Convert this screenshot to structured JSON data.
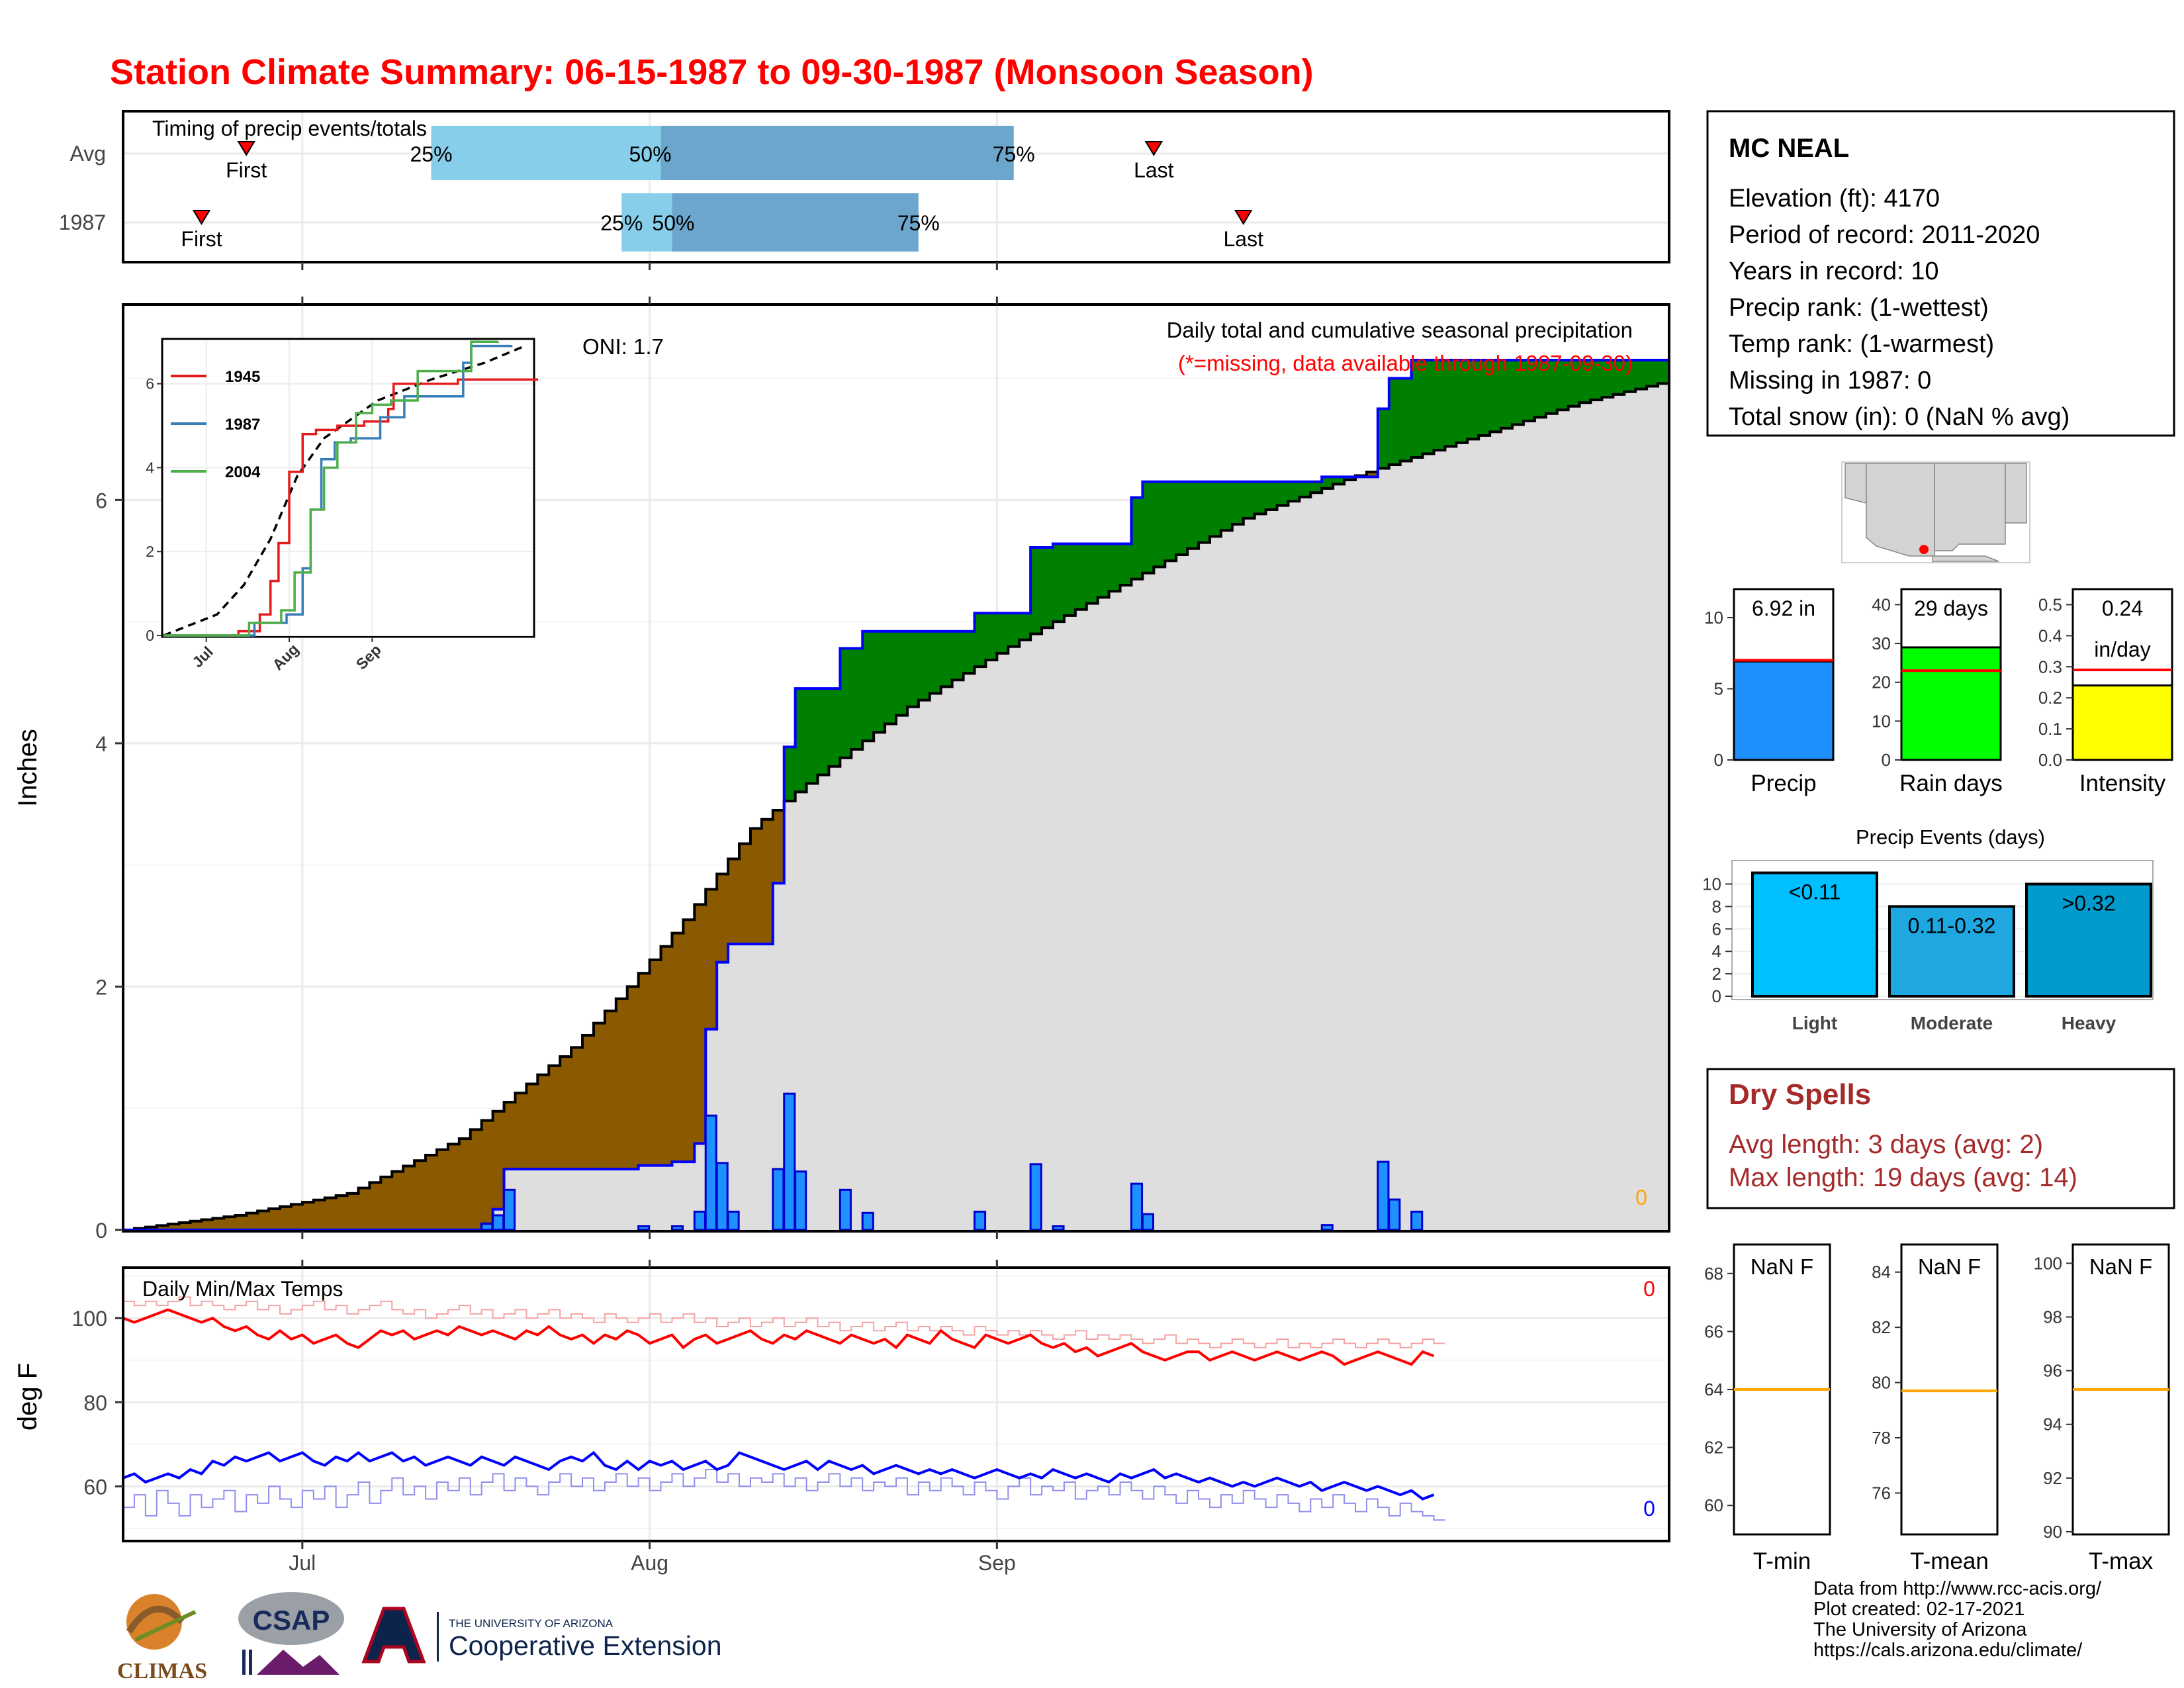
{
  "title": "Station Climate Summary: 06-15-1987 to 09-30-1987 (Monsoon Season)",
  "timing": {
    "label": "Timing of precip events/totals",
    "rows": [
      {
        "name": "Avg",
        "first_label": "First",
        "last_label": "Last",
        "first_day": 11,
        "last_day": 92,
        "p25_day": 27.5,
        "p50_day": 48,
        "p75_day": 79.5,
        "p25_label": "25%",
        "p50_label": "50%",
        "p75_label": "75%"
      },
      {
        "name": "1987",
        "first_label": "First",
        "last_label": "Last",
        "first_day": 7,
        "last_day": 100,
        "p25_day": 44.5,
        "p50_day": 49,
        "p75_day": 71,
        "p25_label": "25%",
        "p50_label": "50%",
        "p75_label": "75%"
      }
    ]
  },
  "main": {
    "ylabel": "Inches",
    "oni_label": "ONI: 1.7",
    "caption": "Daily total and cumulative seasonal precipitation",
    "missing_note": "(*=missing, data available through 1987-09-30)",
    "missing_count": "0",
    "yticks": [
      "0",
      "2",
      "4",
      "6"
    ],
    "xticks": [
      "Jul",
      "Aug",
      "Sep"
    ]
  },
  "inset": {
    "yticks": [
      "0",
      "2",
      "4",
      "6"
    ],
    "xticks": [
      "Jul",
      "Aug",
      "Sep"
    ],
    "legend": [
      {
        "name": "1945",
        "color": "#e41a1c"
      },
      {
        "name": "1987",
        "color": "#377eb8"
      },
      {
        "name": "2004",
        "color": "#4daf4a"
      }
    ]
  },
  "temps": {
    "label": "Daily Min/Max Temps",
    "ylabel": "deg F",
    "yticks": [
      "60",
      "80",
      "100"
    ],
    "missing_max": "0",
    "missing_min": "0"
  },
  "station": {
    "name": "MC NEAL",
    "lines": [
      "Elevation (ft): 4170",
      "Period of record: 2011-2020",
      "Years in record: 10",
      "Precip rank:  (1-wettest)",
      "Temp rank:  (1-warmest)",
      "Missing in 1987: 0",
      "Total snow (in): 0 (NaN % avg)"
    ]
  },
  "mini_bars": [
    {
      "label": "Precip",
      "value_text": "6.92 in",
      "value": 6.92,
      "avg": 7.0,
      "ymax": 12,
      "ticks": [
        "0",
        "5",
        "10"
      ],
      "tick_vals": [
        0,
        5,
        10
      ],
      "color": "#1e90ff"
    },
    {
      "label": "Rain days",
      "value_text": "29 days",
      "value": 29,
      "avg": 23,
      "ymax": 44,
      "ticks": [
        "0",
        "10",
        "20",
        "30",
        "40"
      ],
      "tick_vals": [
        0,
        10,
        20,
        30,
        40
      ],
      "color": "#00ff00"
    },
    {
      "label": "Intensity",
      "value_text": "0.24",
      "value_text2": "in/day",
      "value": 0.24,
      "avg": 0.29,
      "ymax": 0.55,
      "ticks": [
        "0.0",
        "0.1",
        "0.2",
        "0.3",
        "0.4",
        "0.5"
      ],
      "tick_vals": [
        0,
        0.1,
        0.2,
        0.3,
        0.4,
        0.5
      ],
      "color": "#ffff00"
    }
  ],
  "events": {
    "title": "Precip Events (days)",
    "yticks": [
      "0",
      "2",
      "4",
      "6",
      "8",
      "10"
    ],
    "bars": [
      {
        "name": "Light",
        "label": "<0.11",
        "value": 11,
        "color": "#00bfff"
      },
      {
        "name": "Moderate",
        "label": "0.11-0.32",
        "value": 8,
        "color": "#1ea7e0"
      },
      {
        "name": "Heavy",
        "label": ">0.32",
        "value": 10,
        "color": "#009acd"
      }
    ]
  },
  "dry_spells": {
    "title": "Dry Spells",
    "avg_line": "Avg length: 3 days (avg: 2)",
    "max_line": "Max length: 19 days (avg: 14)",
    "color": "#a52a2a"
  },
  "temp_boxes": [
    {
      "label": "T-min",
      "value_text": "NaN F",
      "avg": 64.0,
      "ymin": 59,
      "ymax": 69,
      "ticks": [
        "60",
        "62",
        "64",
        "66",
        "68"
      ],
      "tick_vals": [
        60,
        62,
        64,
        66,
        68
      ]
    },
    {
      "label": "T-mean",
      "value_text": "NaN F",
      "avg": 79.7,
      "ymin": 74.5,
      "ymax": 85,
      "ticks": [
        "76",
        "78",
        "80",
        "82",
        "84"
      ],
      "tick_vals": [
        76,
        78,
        80,
        82,
        84
      ]
    },
    {
      "label": "T-max",
      "value_text": "NaN F",
      "avg": 95.3,
      "ymin": 89.9,
      "ymax": 100.7,
      "ticks": [
        "90",
        "92",
        "94",
        "96",
        "98",
        "100"
      ],
      "tick_vals": [
        90,
        92,
        94,
        96,
        98,
        100
      ]
    }
  ],
  "credits": [
    "Data from http://www.rcc-acis.org/",
    "Plot created: 02-17-2021",
    "The University of Arizona",
    "https://cals.arizona.edu/climate/"
  ],
  "logos": {
    "climas": "CLIMAS",
    "csap": "CSAP",
    "ua_line1": "THE UNIVERSITY OF ARIZONA",
    "ua_line2": "Cooperative Extension"
  },
  "chart_data": {
    "type": "area",
    "title": "Station Climate Summary: 06-15-1987 to 09-30-1987 (Monsoon Season)",
    "ylabel": "Inches",
    "x_start": "1987-06-15",
    "x_end": "1987-09-30",
    "ylim": [
      0,
      7.0
    ],
    "avg_cumulative_knots": [
      [
        0,
        0
      ],
      [
        10,
        0.12
      ],
      [
        20,
        0.3
      ],
      [
        30,
        0.75
      ],
      [
        40,
        1.5
      ],
      [
        45,
        2.0
      ],
      [
        50,
        2.55
      ],
      [
        56,
        3.3
      ],
      [
        60,
        3.6
      ],
      [
        70,
        4.3
      ],
      [
        80,
        4.85
      ],
      [
        90,
        5.35
      ],
      [
        100,
        5.85
      ],
      [
        110,
        6.2
      ],
      [
        120,
        6.5
      ],
      [
        130,
        6.8
      ],
      [
        138,
        6.98
      ]
    ],
    "daily_precip": [
      [
        32,
        0.05
      ],
      [
        33,
        0.12
      ],
      [
        34,
        0.33
      ],
      [
        46,
        0.03
      ],
      [
        49,
        0.03
      ],
      [
        51,
        0.15
      ],
      [
        52,
        0.94
      ],
      [
        53,
        0.55
      ],
      [
        54,
        0.15
      ],
      [
        58,
        0.5
      ],
      [
        59,
        1.12
      ],
      [
        60,
        0.48
      ],
      [
        64,
        0.33
      ],
      [
        66,
        0.14
      ],
      [
        76,
        0.15
      ],
      [
        81,
        0.54
      ],
      [
        83,
        0.03
      ],
      [
        90,
        0.38
      ],
      [
        91,
        0.13
      ],
      [
        107,
        0.04
      ],
      [
        112,
        0.56
      ],
      [
        113,
        0.25
      ],
      [
        115,
        0.15
      ]
    ],
    "temp_max": [
      100,
      99,
      100,
      101,
      102,
      101,
      100,
      99,
      100,
      98,
      97,
      98,
      96,
      95,
      97,
      95,
      96,
      94,
      95,
      96,
      94,
      93,
      95,
      97,
      96,
      97,
      95,
      96,
      97,
      96,
      98,
      97,
      96,
      97,
      96,
      95,
      97,
      96,
      98,
      96,
      95,
      96,
      94,
      96,
      95,
      97,
      96,
      94,
      95,
      96,
      93,
      95,
      96,
      94,
      95,
      96,
      97,
      95,
      94,
      96,
      95,
      97,
      96,
      95,
      94,
      96,
      95,
      94,
      95,
      93,
      96,
      95,
      94,
      97,
      95,
      94,
      93,
      96,
      95,
      94,
      95,
      96,
      94,
      93,
      94,
      92,
      93,
      91,
      92,
      93,
      94,
      92,
      91,
      90,
      91,
      92,
      92,
      90,
      91,
      92,
      91,
      90,
      91,
      92,
      91,
      90,
      91,
      92,
      91,
      89,
      90,
      91,
      92,
      91,
      90,
      89,
      92,
      91
    ],
    "temp_min": [
      62,
      63,
      61,
      62,
      63,
      62,
      64,
      63,
      66,
      65,
      67,
      66,
      67,
      68,
      66,
      67,
      68,
      66,
      65,
      67,
      66,
      68,
      66,
      67,
      68,
      66,
      67,
      65,
      66,
      67,
      66,
      65,
      67,
      66,
      65,
      67,
      66,
      65,
      64,
      66,
      67,
      66,
      68,
      65,
      64,
      66,
      64,
      66,
      65,
      66,
      64,
      65,
      66,
      64,
      65,
      68,
      67,
      66,
      65,
      64,
      65,
      66,
      64,
      66,
      65,
      64,
      65,
      63,
      64,
      65,
      64,
      63,
      64,
      63,
      64,
      63,
      62,
      63,
      64,
      63,
      62,
      63,
      62,
      64,
      63,
      62,
      63,
      62,
      61,
      63,
      62,
      63,
      64,
      62,
      63,
      62,
      61,
      62,
      61,
      60,
      61,
      60,
      61,
      62,
      61,
      60,
      61,
      59,
      60,
      61,
      60,
      59,
      60,
      59,
      58,
      59,
      57,
      58
    ],
    "temp_max_avg_line": [
      104,
      103,
      104,
      103,
      104,
      105,
      103,
      104,
      103,
      102,
      103,
      104,
      102,
      103,
      101,
      102,
      103,
      104,
      102,
      103,
      101,
      102,
      103,
      104,
      102,
      101,
      102,
      100,
      101,
      102,
      103,
      101,
      102,
      100,
      101,
      102,
      100,
      101,
      102,
      100,
      101,
      100,
      99,
      101,
      100,
      99,
      100,
      101,
      99,
      100,
      101,
      99,
      100,
      98,
      99,
      100,
      98,
      99,
      100,
      98,
      99,
      100,
      98,
      99,
      97,
      98,
      99,
      97,
      98,
      99,
      97,
      98,
      97,
      98,
      97,
      96,
      98,
      97,
      96,
      97,
      96,
      97,
      96,
      95,
      96,
      97,
      95,
      96,
      95,
      96,
      95,
      94,
      95,
      96,
      94,
      95,
      94,
      93,
      94,
      95,
      94,
      93,
      94,
      95,
      93,
      94,
      93,
      94,
      95,
      94,
      93,
      94,
      95,
      94,
      93,
      94,
      95,
      94
    ],
    "temp_min_avg_line": [
      55,
      58,
      53,
      59,
      56,
      53,
      58,
      55,
      57,
      59,
      54,
      58,
      56,
      60,
      57,
      55,
      59,
      57,
      60,
      55,
      58,
      61,
      56,
      59,
      62,
      58,
      60,
      57,
      61,
      59,
      62,
      58,
      61,
      63,
      59,
      62,
      60,
      58,
      61,
      63,
      60,
      62,
      59,
      61,
      63,
      60,
      62,
      59,
      61,
      63,
      60,
      62,
      64,
      61,
      63,
      60,
      62,
      61,
      63,
      60,
      62,
      59,
      61,
      63,
      60,
      62,
      59,
      61,
      60,
      62,
      58,
      61,
      59,
      62,
      60,
      58,
      61,
      59,
      57,
      60,
      62,
      58,
      60,
      59,
      61,
      57,
      59,
      60,
      58,
      61,
      59,
      57,
      60,
      58,
      56,
      59,
      57,
      55,
      58,
      56,
      59,
      57,
      55,
      58,
      56,
      54,
      57,
      55,
      58,
      56,
      54,
      57,
      55,
      53,
      56,
      54,
      53,
      52
    ],
    "inset_series": [
      {
        "name": "1945",
        "color": "#e41a1c",
        "points": [
          [
            0,
            0
          ],
          [
            28,
            0.1
          ],
          [
            36,
            0.5
          ],
          [
            40,
            1.3
          ],
          [
            43,
            2.2
          ],
          [
            47,
            3.9
          ],
          [
            52,
            4.8
          ],
          [
            57,
            4.9
          ],
          [
            65,
            5.0
          ],
          [
            75,
            5.1
          ],
          [
            84,
            5.4
          ],
          [
            86,
            6.0
          ],
          [
            110,
            6.1
          ],
          [
            140,
            6.1
          ]
        ]
      },
      {
        "name": "1987",
        "color": "#377eb8",
        "points": [
          [
            0,
            0
          ],
          [
            34,
            0.3
          ],
          [
            46,
            0.5
          ],
          [
            52,
            1.6
          ],
          [
            55,
            3.0
          ],
          [
            59,
            4.2
          ],
          [
            64,
            4.6
          ],
          [
            70,
            4.7
          ],
          [
            81,
            5.2
          ],
          [
            90,
            5.7
          ],
          [
            112,
            6.5
          ],
          [
            115,
            6.9
          ],
          [
            130,
            6.92
          ]
        ]
      },
      {
        "name": "2004",
        "color": "#4daf4a",
        "points": [
          [
            0,
            0
          ],
          [
            32,
            0.3
          ],
          [
            44,
            0.6
          ],
          [
            49,
            1.5
          ],
          [
            55,
            3.0
          ],
          [
            60,
            4.0
          ],
          [
            65,
            4.6
          ],
          [
            72,
            5.3
          ],
          [
            78,
            5.5
          ],
          [
            85,
            5.6
          ],
          [
            95,
            6.3
          ],
          [
            115,
            7.0
          ],
          [
            125,
            7.2
          ]
        ]
      }
    ],
    "inset_avg_knots": [
      [
        0,
        0
      ],
      [
        20,
        0.5
      ],
      [
        30,
        1.2
      ],
      [
        40,
        2.3
      ],
      [
        50,
        3.8
      ],
      [
        60,
        4.7
      ],
      [
        80,
        5.6
      ],
      [
        100,
        6.1
      ],
      [
        120,
        6.5
      ],
      [
        135,
        6.9
      ]
    ]
  }
}
